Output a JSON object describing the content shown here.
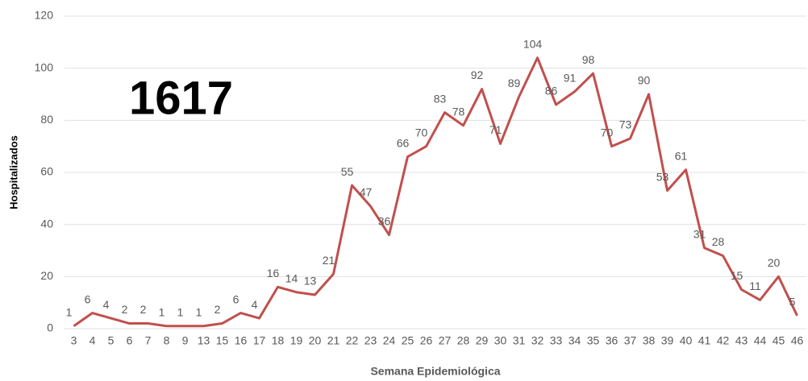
{
  "chart_data": {
    "type": "line",
    "annotation": "1617",
    "x_label": "Semana Epidemiológica",
    "y_label": "Hospitalizados",
    "categories": [
      "3",
      "4",
      "5",
      "6",
      "7",
      "8",
      "9",
      "13",
      "15",
      "16",
      "17",
      "18",
      "19",
      "20",
      "21",
      "22",
      "23",
      "24",
      "25",
      "26",
      "27",
      "28",
      "29",
      "30",
      "31",
      "32",
      "33",
      "34",
      "35",
      "36",
      "37",
      "38",
      "39",
      "40",
      "41",
      "42",
      "43",
      "44",
      "45",
      "46"
    ],
    "values": [
      1,
      6,
      4,
      2,
      2,
      1,
      1,
      1,
      2,
      6,
      4,
      16,
      14,
      13,
      21,
      55,
      47,
      36,
      66,
      70,
      83,
      78,
      92,
      71,
      89,
      104,
      86,
      91,
      98,
      70,
      73,
      90,
      53,
      61,
      31,
      28,
      15,
      11,
      20,
      5
    ],
    "color": "#c0504d",
    "ylim": [
      0,
      120
    ],
    "yticks": [
      0,
      20,
      40,
      60,
      80,
      100,
      120
    ],
    "grid": true
  }
}
